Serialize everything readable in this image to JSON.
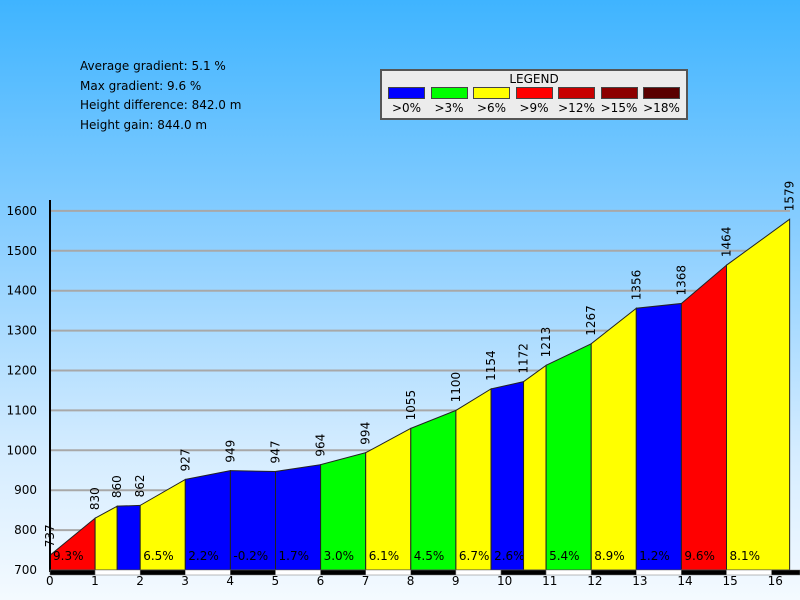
{
  "stats": {
    "average_gradient": "Average gradient: 5.1 %",
    "max_gradient": "Max gradient: 9.6 %",
    "height_difference": "Height difference: 842.0 m",
    "height_gain": "Height gain: 844.0 m"
  },
  "legend": {
    "title": "LEGEND",
    "items": [
      {
        "label": ">0%",
        "color": "#0000ff"
      },
      {
        "label": ">3%",
        "color": "#00ff00"
      },
      {
        "label": ">6%",
        "color": "#ffff00"
      },
      {
        "label": ">9%",
        "color": "#ff0000"
      },
      {
        "label": ">12%",
        "color": "#c80000"
      },
      {
        "label": ">15%",
        "color": "#8c0000"
      },
      {
        "label": ">18%",
        "color": "#5a0000"
      }
    ]
  },
  "chart_data": {
    "type": "area",
    "title": "",
    "xlabel": "",
    "ylabel": "",
    "xlim": [
      0,
      16.4
    ],
    "ylim": [
      700,
      1600
    ],
    "x_ticks": [
      0,
      1,
      2,
      3,
      4,
      5,
      6,
      7,
      8,
      9,
      10,
      11,
      12,
      13,
      14,
      15,
      16
    ],
    "y_ticks": [
      700,
      800,
      900,
      1000,
      1100,
      1200,
      1300,
      1400,
      1500,
      1600
    ],
    "grid": true,
    "points": [
      {
        "x": 0,
        "elevation": 737
      },
      {
        "x": 1,
        "elevation": 830
      },
      {
        "x": 1.49,
        "elevation": 860
      },
      {
        "x": 2,
        "elevation": 862
      },
      {
        "x": 3,
        "elevation": 927
      },
      {
        "x": 4,
        "elevation": 949
      },
      {
        "x": 5,
        "elevation": 947
      },
      {
        "x": 6,
        "elevation": 964
      },
      {
        "x": 7,
        "elevation": 994
      },
      {
        "x": 8,
        "elevation": 1055
      },
      {
        "x": 9,
        "elevation": 1100
      },
      {
        "x": 9.78,
        "elevation": 1154
      },
      {
        "x": 10.5,
        "elevation": 1172
      },
      {
        "x": 11,
        "elevation": 1213
      },
      {
        "x": 12,
        "elevation": 1267
      },
      {
        "x": 13,
        "elevation": 1356
      },
      {
        "x": 14,
        "elevation": 1368
      },
      {
        "x": 15,
        "elevation": 1464
      },
      {
        "x": 16.4,
        "elevation": 1579
      }
    ],
    "segments": [
      {
        "color": "#ff0000",
        "label": "9.3%"
      },
      {
        "color": "#ffff00",
        "label": ""
      },
      {
        "color": "#0000ff",
        "label": ""
      },
      {
        "color": "#ffff00",
        "label": "6.5%"
      },
      {
        "color": "#0000ff",
        "label": "2.2%"
      },
      {
        "color": "#0000ff",
        "label": "-0.2%"
      },
      {
        "color": "#0000ff",
        "label": "1.7%"
      },
      {
        "color": "#00ff00",
        "label": "3.0%"
      },
      {
        "color": "#ffff00",
        "label": "6.1%"
      },
      {
        "color": "#00ff00",
        "label": "4.5%"
      },
      {
        "color": "#ffff00",
        "label": "6.7%"
      },
      {
        "color": "#0000ff",
        "label": "2.6%"
      },
      {
        "color": "#ffff00",
        "label": ""
      },
      {
        "color": "#00ff00",
        "label": "5.4%"
      },
      {
        "color": "#ffff00",
        "label": "8.9%"
      },
      {
        "color": "#0000ff",
        "label": "1.2%"
      },
      {
        "color": "#ff0000",
        "label": "9.6%"
      },
      {
        "color": "#ffff00",
        "label": "8.1%"
      }
    ]
  }
}
